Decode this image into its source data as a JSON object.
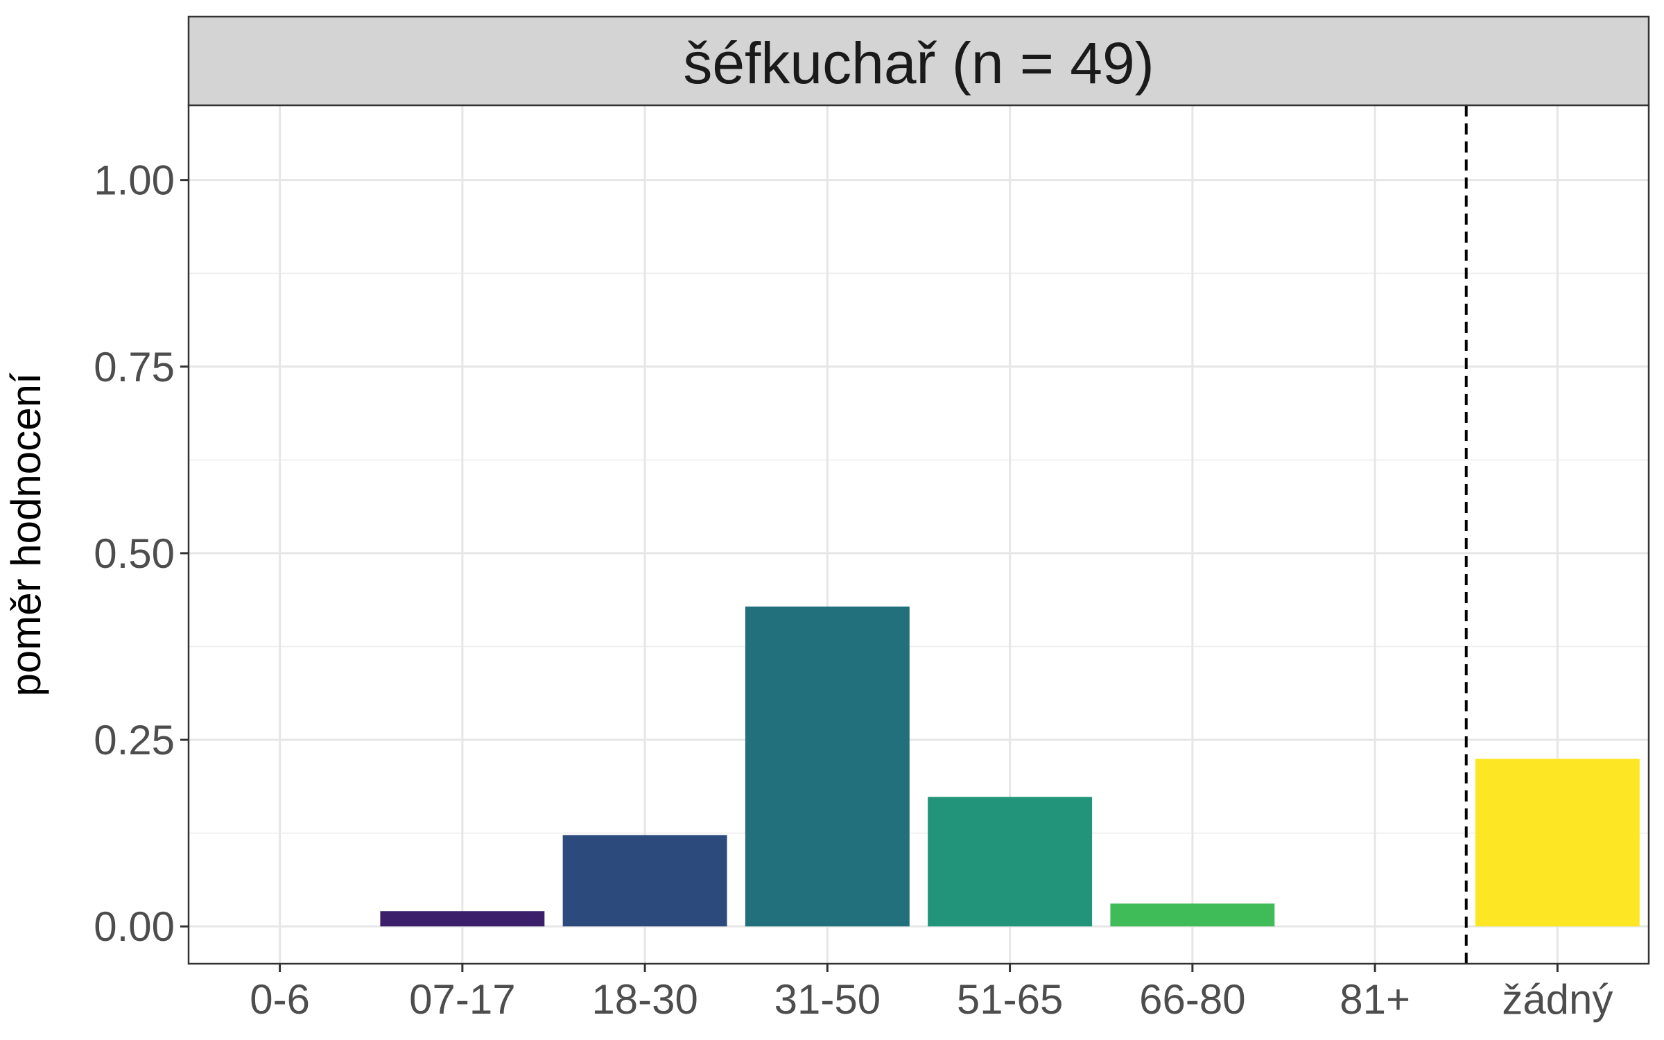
{
  "chart_data": {
    "type": "bar",
    "facet_title": "šéfkuchař (n = 49)",
    "ylabel": "poměr hodnocení",
    "xlabel": "",
    "ylim": [
      -0.05,
      1.1
    ],
    "y_ticks": [
      "0.00",
      "0.25",
      "0.50",
      "0.75",
      "1.00"
    ],
    "y_tick_values": [
      0,
      0.25,
      0.5,
      0.75,
      1.0
    ],
    "categories": [
      "0-6",
      "07-17",
      "18-30",
      "31-50",
      "51-65",
      "66-80",
      "81+",
      "žádný"
    ],
    "values": [
      0,
      0.0204,
      0.1224,
      0.4286,
      0.1735,
      0.0306,
      0,
      0.2245
    ],
    "colors": [
      "#440154",
      "#3b1f6b",
      "#2c4a7c",
      "#21707c",
      "#21947a",
      "#3fbb58",
      "#7ad151",
      "#fde725"
    ],
    "separator_after_category": "81+",
    "grid": true,
    "legend": "none"
  }
}
